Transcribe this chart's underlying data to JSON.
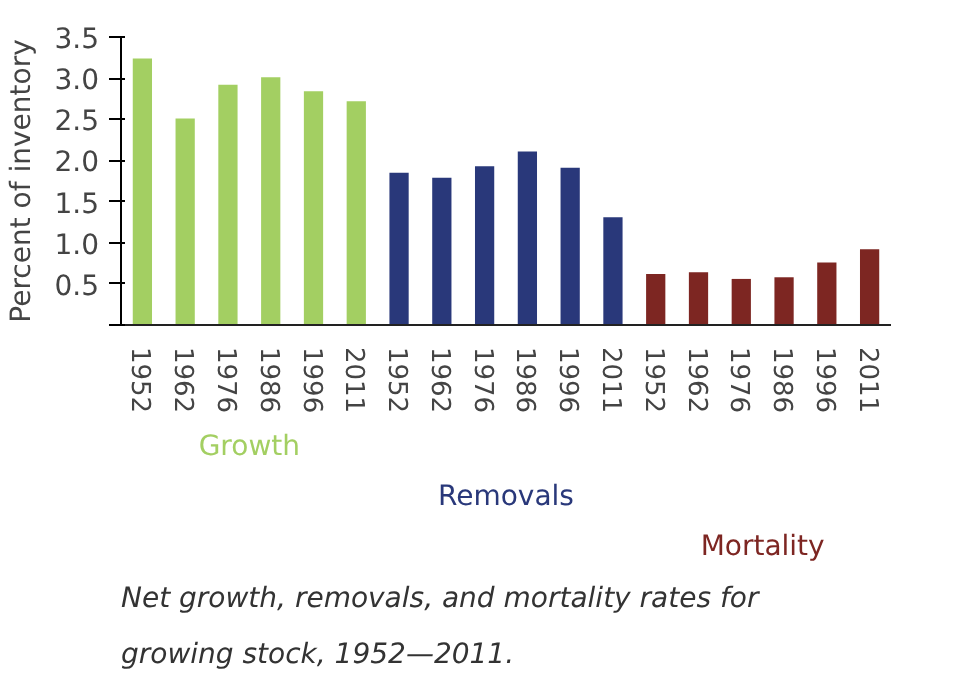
{
  "chart_data": {
    "type": "bar",
    "ylabel": "Percent of inventory",
    "categories": [
      "1952",
      "1962",
      "1976",
      "1986",
      "1996",
      "2011",
      "1952",
      "1962",
      "1976",
      "1986",
      "1996",
      "2011",
      "1952",
      "1962",
      "1976",
      "1986",
      "1996",
      "2011"
    ],
    "series": [
      {
        "name": "Growth",
        "color": "#a3cf62",
        "values": [
          3.24,
          2.51,
          2.92,
          3.01,
          2.84,
          2.72,
          null,
          null,
          null,
          null,
          null,
          null,
          null,
          null,
          null,
          null,
          null,
          null
        ]
      },
      {
        "name": "Removals",
        "color": "#29387a",
        "values": [
          null,
          null,
          null,
          null,
          null,
          null,
          1.85,
          1.79,
          1.93,
          2.11,
          1.91,
          1.31,
          null,
          null,
          null,
          null,
          null,
          null
        ]
      },
      {
        "name": "Mortality",
        "color": "#7d2622",
        "values": [
          null,
          null,
          null,
          null,
          null,
          null,
          null,
          null,
          null,
          null,
          null,
          null,
          0.62,
          0.64,
          0.56,
          0.58,
          0.76,
          0.92
        ]
      }
    ],
    "ylim": [
      0,
      3.5
    ],
    "yticks": [
      {
        "value": 0,
        "label": null
      },
      {
        "value": 0.5,
        "label": "0.5"
      },
      {
        "value": 1,
        "label": "1.0"
      },
      {
        "value": 1.5,
        "label": "1.5"
      },
      {
        "value": 2,
        "label": "2.0"
      },
      {
        "value": 2.5,
        "label": "2.5"
      },
      {
        "value": 3,
        "label": "3.0"
      },
      {
        "value": 3.5,
        "label": "3.5"
      }
    ],
    "grid": false,
    "annotations": [
      "Net growth, removals, and mortality rates for growing stock, 1952—2011."
    ]
  }
}
